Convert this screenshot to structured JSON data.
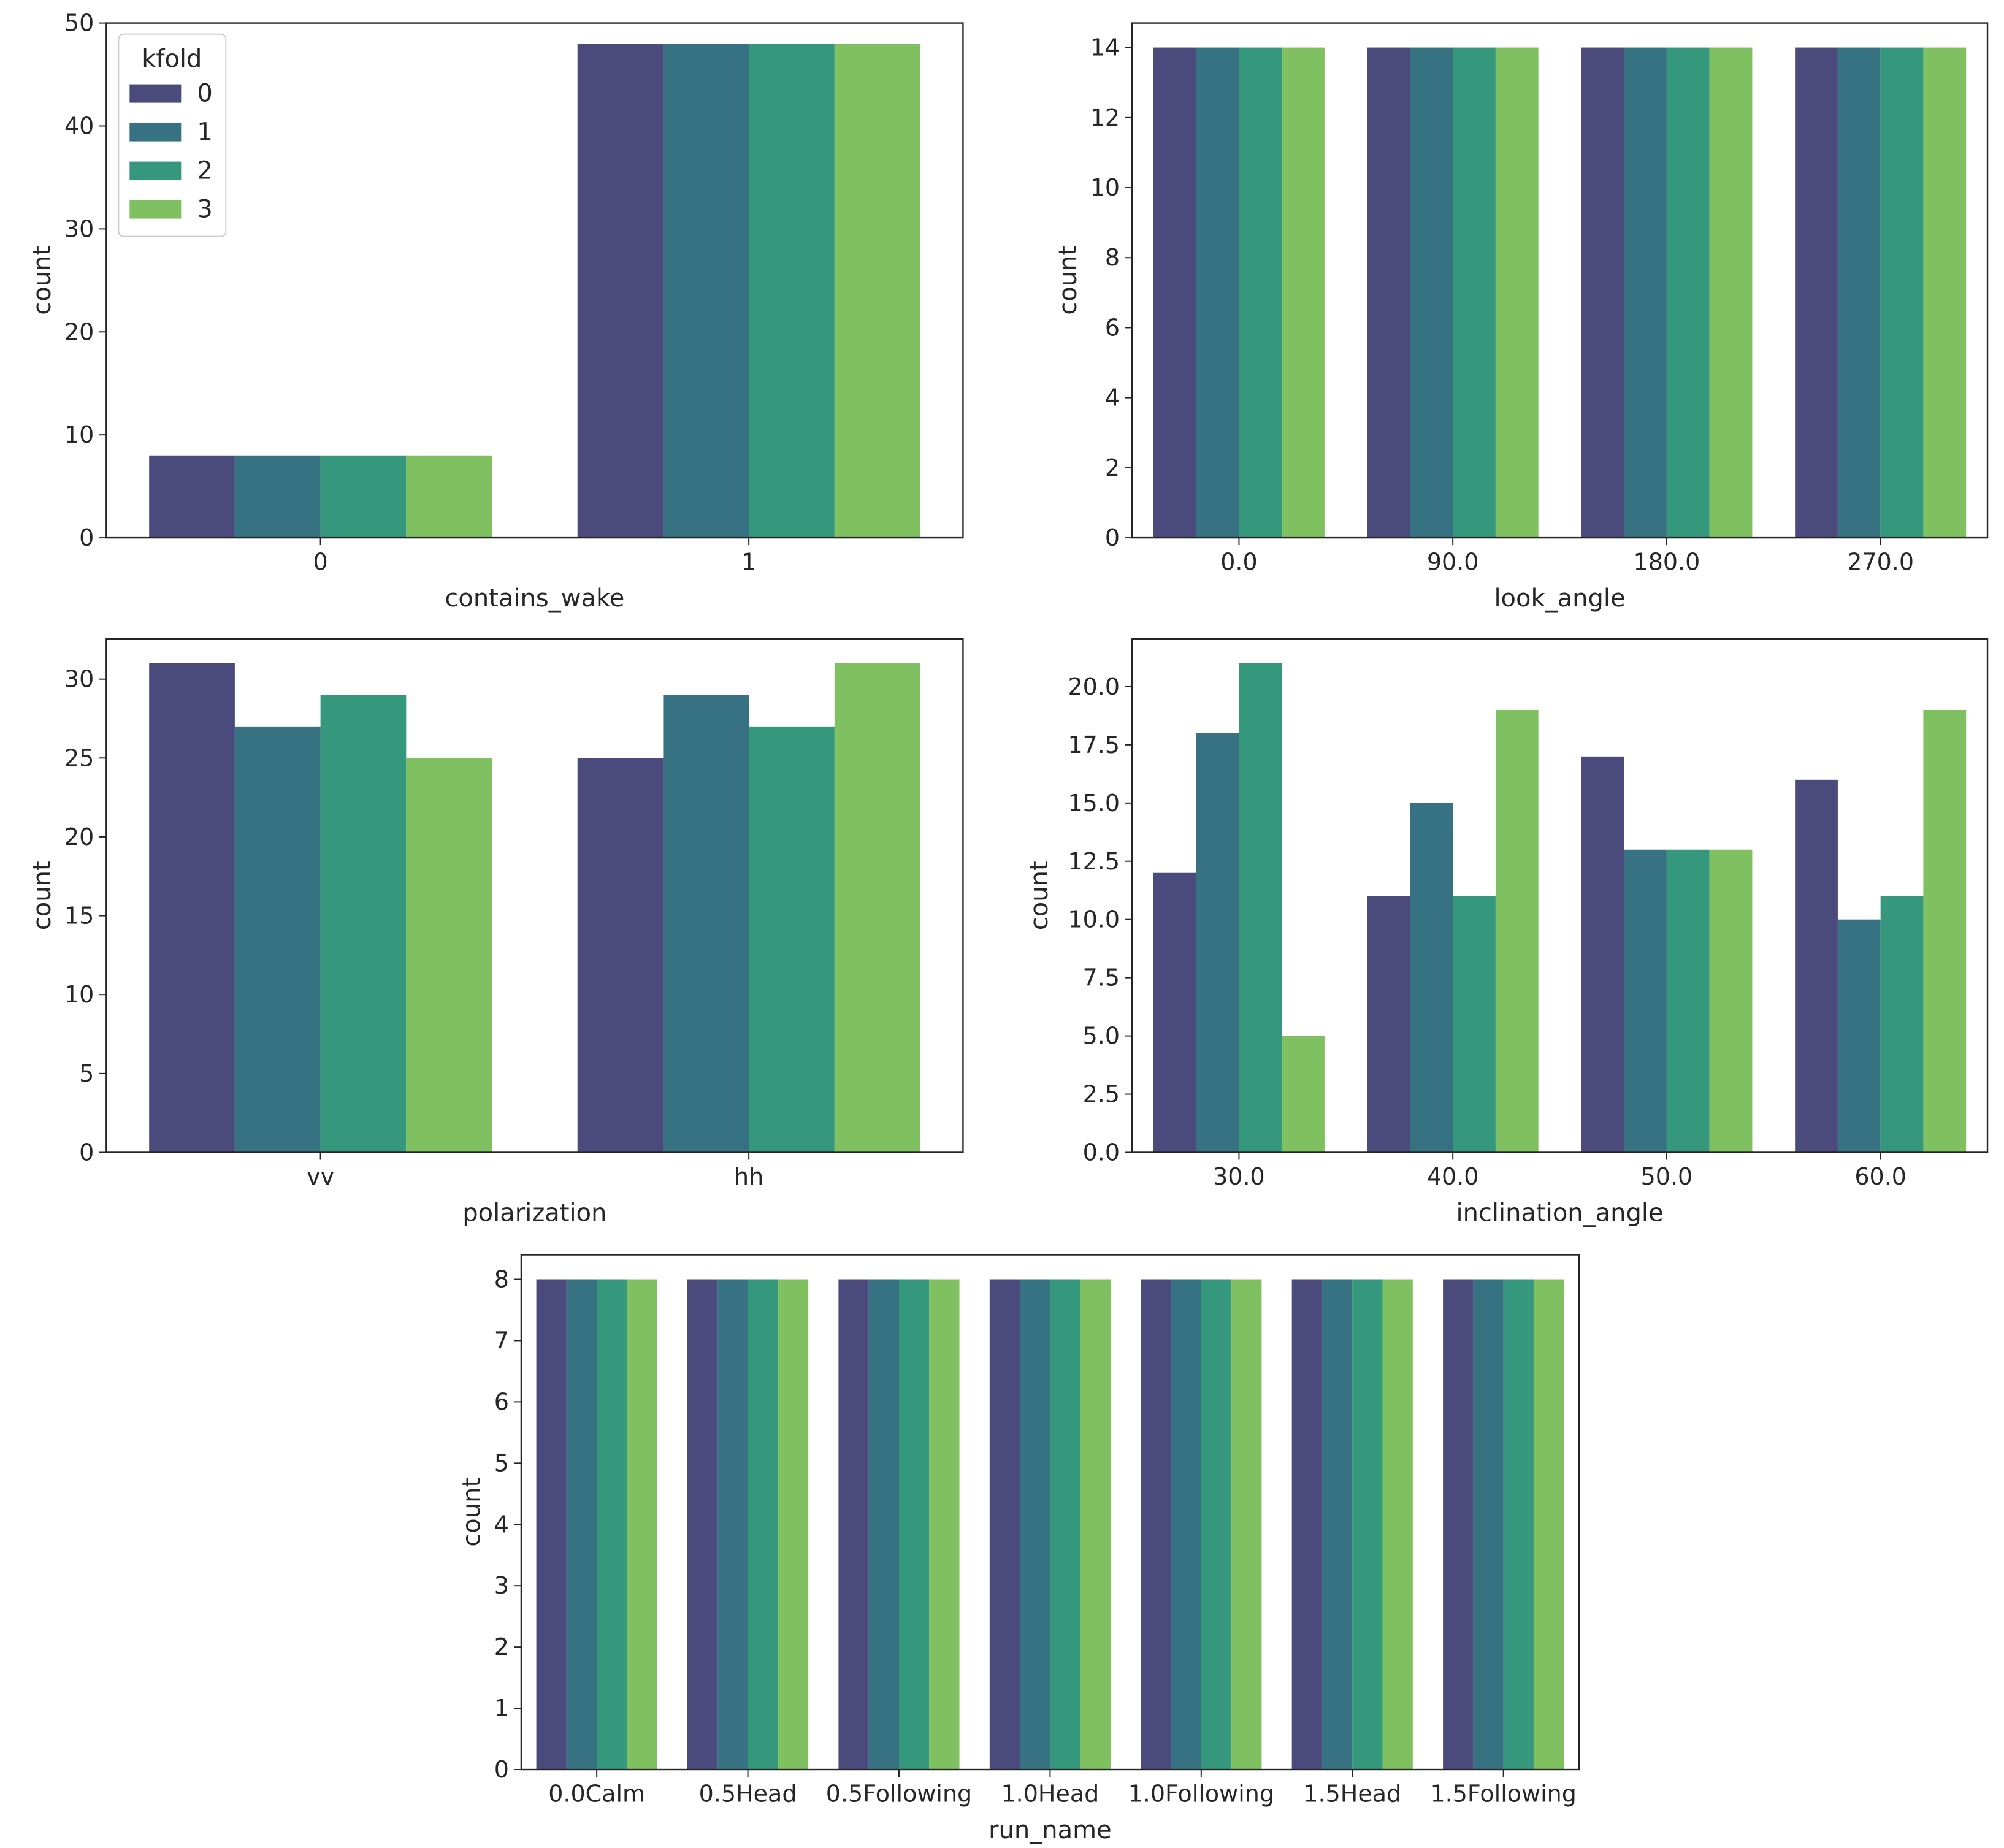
{
  "colors": {
    "series": [
      "#482878",
      "#2f6b7e",
      "#22a07a",
      "#74c35a"
    ],
    "fills": [
      "#4a4a7c",
      "#377282",
      "#35977c",
      "#7fc160"
    ],
    "axis": "#262626"
  },
  "legend": {
    "title": "kfold",
    "entries": [
      "0",
      "1",
      "2",
      "3"
    ]
  },
  "chart_data": [
    {
      "type": "bar",
      "xlabel": "contains_wake",
      "ylabel": "count",
      "categories": [
        "0",
        "1"
      ],
      "ylim": [
        0,
        50
      ],
      "yticks": [
        "0",
        "10",
        "20",
        "30",
        "40",
        "50"
      ],
      "legend": "upper-left",
      "series": [
        {
          "name": "0",
          "values": [
            8,
            48
          ]
        },
        {
          "name": "1",
          "values": [
            8,
            48
          ]
        },
        {
          "name": "2",
          "values": [
            8,
            48
          ]
        },
        {
          "name": "3",
          "values": [
            8,
            48
          ]
        }
      ]
    },
    {
      "type": "bar",
      "xlabel": "look_angle",
      "ylabel": "count",
      "categories": [
        "0.0",
        "90.0",
        "180.0",
        "270.0"
      ],
      "ylim": [
        0,
        14.7
      ],
      "yticks": [
        "0",
        "2",
        "4",
        "6",
        "8",
        "10",
        "12",
        "14"
      ],
      "series": [
        {
          "name": "0",
          "values": [
            14,
            14,
            14,
            14
          ]
        },
        {
          "name": "1",
          "values": [
            14,
            14,
            14,
            14
          ]
        },
        {
          "name": "2",
          "values": [
            14,
            14,
            14,
            14
          ]
        },
        {
          "name": "3",
          "values": [
            14,
            14,
            14,
            14
          ]
        }
      ]
    },
    {
      "type": "bar",
      "xlabel": "polarization",
      "ylabel": "count",
      "categories": [
        "vv",
        "hh"
      ],
      "ylim": [
        0,
        32.55
      ],
      "yticks": [
        "0",
        "5",
        "10",
        "15",
        "20",
        "25",
        "30"
      ],
      "series": [
        {
          "name": "0",
          "values": [
            31,
            25
          ]
        },
        {
          "name": "1",
          "values": [
            27,
            29
          ]
        },
        {
          "name": "2",
          "values": [
            29,
            27
          ]
        },
        {
          "name": "3",
          "values": [
            25,
            31
          ]
        }
      ]
    },
    {
      "type": "bar",
      "xlabel": "inclination_angle",
      "ylabel": "count",
      "categories": [
        "30.0",
        "40.0",
        "50.0",
        "60.0"
      ],
      "ylim": [
        0,
        22.05
      ],
      "yticks": [
        "0.0",
        "2.5",
        "5.0",
        "7.5",
        "10.0",
        "12.5",
        "15.0",
        "17.5",
        "20.0"
      ],
      "series": [
        {
          "name": "0",
          "values": [
            12,
            11,
            17,
            16
          ]
        },
        {
          "name": "1",
          "values": [
            18,
            15,
            13,
            10
          ]
        },
        {
          "name": "2",
          "values": [
            21,
            11,
            13,
            11
          ]
        },
        {
          "name": "3",
          "values": [
            5,
            19,
            13,
            19
          ]
        }
      ]
    },
    {
      "type": "bar",
      "xlabel": "run_name",
      "ylabel": "count",
      "categories": [
        "0.0Calm",
        "0.5Head",
        "0.5Following",
        "1.0Head",
        "1.0Following",
        "1.5Head",
        "1.5Following"
      ],
      "ylim": [
        0,
        8.4
      ],
      "yticks": [
        "0",
        "1",
        "2",
        "3",
        "4",
        "5",
        "6",
        "7",
        "8"
      ],
      "series": [
        {
          "name": "0",
          "values": [
            8,
            8,
            8,
            8,
            8,
            8,
            8
          ]
        },
        {
          "name": "1",
          "values": [
            8,
            8,
            8,
            8,
            8,
            8,
            8
          ]
        },
        {
          "name": "2",
          "values": [
            8,
            8,
            8,
            8,
            8,
            8,
            8
          ]
        },
        {
          "name": "3",
          "values": [
            8,
            8,
            8,
            8,
            8,
            8,
            8
          ]
        }
      ]
    }
  ]
}
